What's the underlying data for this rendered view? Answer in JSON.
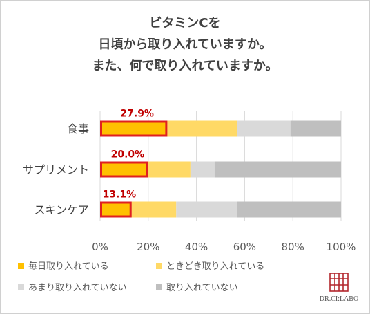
{
  "title_lines": [
    "ビタミンCを",
    "日頃から取り入れていますか。",
    "また、何で取り入れていますか。"
  ],
  "logo_text": "DR.CI:LABO",
  "chart_data": {
    "type": "bar",
    "orientation": "horizontal",
    "stacked": true,
    "categories": [
      "食事",
      "サプリメント",
      "スキンケア"
    ],
    "series": [
      {
        "name": "毎日取り入れている",
        "color": "#FFC000",
        "values": [
          27.9,
          20.0,
          13.1
        ]
      },
      {
        "name": "ときどき取り入れている",
        "color": "#FFD966",
        "values": [
          29.1,
          17.5,
          18.5
        ]
      },
      {
        "name": "あまり取り入れていない",
        "color": "#D9D9D9",
        "values": [
          22.0,
          10.0,
          25.4
        ]
      },
      {
        "name": "取り入れていない",
        "color": "#BFBFBF",
        "values": [
          21.0,
          52.5,
          43.0
        ]
      }
    ],
    "data_labels": [
      "27.9%",
      "20.0%",
      "13.1%"
    ],
    "highlight_color": "#E02020",
    "label_color": "#C00000",
    "xlim": [
      0,
      100
    ],
    "xticks": [
      "0%",
      "20%",
      "40%",
      "60%",
      "80%",
      "100%"
    ],
    "grid": true,
    "legend_position": "bottom"
  }
}
